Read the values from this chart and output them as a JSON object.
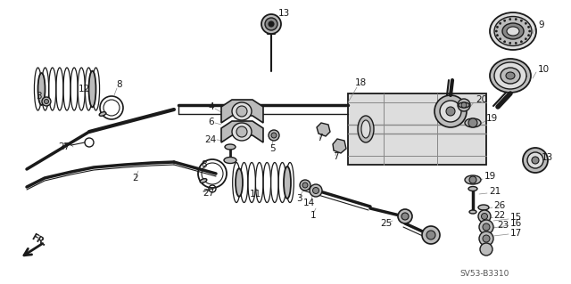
{
  "bg_color": "#ffffff",
  "diagram_code": "SV53-B3310",
  "dark": "#1a1a1a",
  "gray1": "#888888",
  "gray2": "#bbbbbb",
  "gray3": "#dddddd",
  "label_fs": 7.5,
  "code_fs": 6.5
}
